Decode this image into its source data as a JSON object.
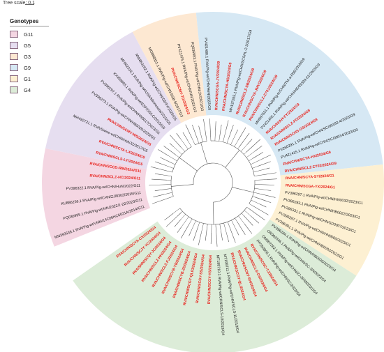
{
  "scale": {
    "label": "Tree scale: 0.1"
  },
  "legend": {
    "title": "Genotypes",
    "items": [
      {
        "label": "G11",
        "color": "#f4d6e2"
      },
      {
        "label": "G5",
        "color": "#e6def0"
      },
      {
        "label": "G3",
        "color": "#fde8d2"
      },
      {
        "label": "G9",
        "color": "#d6e8f4"
      },
      {
        "label": "G1",
        "color": "#fdf0d2"
      },
      {
        "label": "G4",
        "color": "#dcecd8"
      }
    ]
  },
  "colors": {
    "highlight": "#e8201a",
    "reference": "#1a1a1a",
    "branch": "#555555"
  },
  "sectors": [
    {
      "genotype": "G11",
      "color": "#f4d6e2",
      "leaves": [
        {
          "label": "MN393538.1 RVA/Pig-wt/VNM/14C06HC6021A/2014/G11",
          "highlight": false
        },
        {
          "label": "PQ036995.1 RVA/Pig-wt/HN/2022/1-22/2023/G11",
          "highlight": false
        },
        {
          "label": "KU886256.1 RVA/Pig-wt/CHN/ZJ/8302/2015/G11",
          "highlight": false
        },
        {
          "label": "PV396322.1 RVA/Pig-wt/CHN/HuN/2022/G11",
          "highlight": false
        },
        {
          "label": "RVA/CHN/SCLZ-HC/2024/G11",
          "highlight": true
        },
        {
          "label": "RVA/CHN/SCCD-RM/2024/G11",
          "highlight": true
        }
      ]
    },
    {
      "genotype": "G5",
      "color": "#e6def0",
      "leaves": [
        {
          "label": "RVA/CHN/SCLS-LY/2024/G5",
          "highlight": true
        },
        {
          "label": "RVA/CHN/SCYA-LX/2024/G5",
          "highlight": true
        },
        {
          "label": "MH492721.1 RVA/Swine-wt/CHN/HeNJZ/2017/G5",
          "highlight": false
        },
        {
          "label": "RVA/CHN/SCMY-WS/2024/G5",
          "highlight": true
        },
        {
          "label": "PV396273.1 RVA/Pig-wt/CHN/HB0020/2023/G5",
          "highlight": false
        },
        {
          "label": "PV396297.1 RVA/Pig-wt/CHN/HN0017/2023/G5",
          "highlight": false
        },
        {
          "label": "KX459693.1 RVA/Pig-wt/ESP/G5/LC/2015/G5",
          "highlight": false
        },
        {
          "label": "MF662316.1 RVA/Pig-wt/USA/Minnesota/2015/G5",
          "highlight": false
        },
        {
          "label": "MW863192.1 RVA/Pig-wt/CHN/GDSY/2020/G5",
          "highlight": false
        }
      ]
    },
    {
      "genotype": "G3",
      "color": "#fde8d2",
      "leaves": [
        {
          "label": "MG868851.1 RVA/Pig-wt/CHN/SSB-5/2017/G3",
          "highlight": false
        },
        {
          "label": "RVA/CHN/SCMY-TD/2024/G3",
          "highlight": true
        },
        {
          "label": "PV421476.1 RVA/Pig-wt/CHN/HN/2021/G3",
          "highlight": false
        },
        {
          "label": "PQ036983.1 RVA/Pig-wt/CHN/JX/2021/G3",
          "highlight": false
        }
      ]
    },
    {
      "genotype": "G9",
      "color": "#d6e8f4",
      "leaves": [
        {
          "label": "PV421480.1 RVA/Pig-wt/CHN/HeN/2022/G9",
          "highlight": false
        },
        {
          "label": "RVA/CHN/SCGA-JY/2024/G9",
          "highlight": true
        },
        {
          "label": "RVA/CHN/SCYA-HS/2024/G9",
          "highlight": true
        },
        {
          "label": "MH137265.1 RVA/Pig-wt/CHN/SCSHL-2-3/2017/G9",
          "highlight": false
        },
        {
          "label": "RVA/CHN/SCLZ-SB/2024/G9",
          "highlight": true
        },
        {
          "label": "RVA/CHN/SCYA-JMY/2024/G9",
          "highlight": true
        },
        {
          "label": "RVA/CHN/SCLZ-ZY01/2024/G9",
          "highlight": true
        },
        {
          "label": "MH697651.1 RVA/Pig-tc/CHN/TM-a-P86/2018/G9",
          "highlight": false
        },
        {
          "label": "PV421465.1 RVA/Pig-wt/CHN/HE/09339-61/2023/G9",
          "highlight": false
        },
        {
          "label": "RVA/CHN/AH-FY/2024/G9",
          "highlight": true
        },
        {
          "label": "RVA/CHN/SCLZ-FD/2024/G9",
          "highlight": true
        },
        {
          "label": "RVA/CHN/SCHS-GS/2024/G9",
          "highlight": true
        },
        {
          "label": "PV260291.1 RVA/Pig-wt/CHN/SC/09182-4/2023/G9",
          "highlight": false
        },
        {
          "label": "PV421415.1 RVA/Pig-wt/CHN/SC/09014/2023/G9",
          "highlight": false
        },
        {
          "label": "RVA/CHN/SCYA-HX/2024/G9",
          "highlight": true
        },
        {
          "label": "RVA/CHN/SCLZ-ZY02/2024/G9",
          "highlight": true
        }
      ]
    },
    {
      "genotype": "G1",
      "color": "#fdf0d2",
      "leaves": [
        {
          "label": "RVA/CHN/SCYA-SY/2024/G1",
          "highlight": true
        },
        {
          "label": "RVA/CHN/SCGA-YX/2024/G1",
          "highlight": true
        },
        {
          "label": "PV396297.1 RVA/Pig-wt/CHN/HN0032/2023/G1",
          "highlight": false
        },
        {
          "label": "PV396283.1 RVA/Pig-wt/CHN/HB0022/2023/G1",
          "highlight": false
        },
        {
          "label": "PV396331.1 RVA/Pig-wt/CHN/SD0007/2023/G1",
          "highlight": false
        },
        {
          "label": "PV396287.1 RVA/Pig-wt/CHN/HN0005/2023/G1",
          "highlight": false
        },
        {
          "label": "PV396301.1 RVA/Pig-wt/CHN/HB0003/2023/G1",
          "highlight": false
        }
      ]
    },
    {
      "genotype": "G4",
      "color": "#dcecd8",
      "leaves": [
        {
          "label": "PV396284.1 RVA/Pig-wt/CHN/HB0026/2023/G4",
          "highlight": false
        },
        {
          "label": "OR903346.1 RVA/Pig-wt/CHN/SC-SN/2023/G4",
          "highlight": false
        },
        {
          "label": "OM907262.1 RVA/Pig-wt/CHN/ZJ-2048/2021/G4",
          "highlight": false
        },
        {
          "label": "PP290808.1 RVA/Pig-wt/CHN/SC/2022/G4",
          "highlight": false
        },
        {
          "label": "RVA/CHN/SCNC-TJ/2024/G4",
          "highlight": true
        },
        {
          "label": "RVA/CHN/SCLS-DS/2024/G4",
          "highlight": true
        },
        {
          "label": "RVA/CHN/SCNY-SH/2024/G4",
          "highlight": true
        },
        {
          "label": "RVA/CHN/SCGY-QL/2024/G4",
          "highlight": true
        },
        {
          "label": "MT198711.1 RVA/Pig-wt/CHN/SCLS-11/2019/G4",
          "highlight": false
        },
        {
          "label": "MT198710.1 RVA/Pig-wt/CHN/SCLS-10/2019/G4",
          "highlight": false
        },
        {
          "label": "RVA/CHN/SCGY-YS/2024/G4",
          "highlight": true
        },
        {
          "label": "RVA/CHN/SCGY-SS/2024/G4",
          "highlight": true
        },
        {
          "label": "RVA/CHN/SCGY-QL01/2024/G4",
          "highlight": true
        },
        {
          "label": "RVA/CHN/SCYB-ZD/2024/G4",
          "highlight": true
        },
        {
          "label": "RVA/CHN/SCYB-YB/2024/G4",
          "highlight": true
        },
        {
          "label": "RVA/CHN/SCLZ-FJ/2024/G4",
          "highlight": true
        },
        {
          "label": "RVA/CHN/SCLZ-HH/2024/G4",
          "highlight": true
        },
        {
          "label": "RVA/SHN/SCQY-JC/2024/G4",
          "highlight": true
        },
        {
          "label": "RVA/CHN/SCJY-YC/2024/G4",
          "highlight": true
        },
        {
          "label": "RVA/CHN/SCYA-CX/2024/G4",
          "highlight": true
        }
      ]
    }
  ]
}
